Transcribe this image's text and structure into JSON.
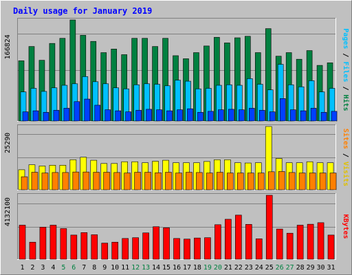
{
  "title": "Daily usage for January 2019",
  "colors": {
    "background": "#c0c0c0",
    "title_text": "#0000ff",
    "hits": "#008040",
    "files": "#00c0ff",
    "pages": "#0040ff",
    "visits": "#ffff00",
    "sites": "#ff8000",
    "kbytes": "#ff0000",
    "weekend_day": "#008040",
    "weekday_day": "#000000"
  },
  "chart_data": [
    {
      "type": "bar",
      "name": "hits-files-pages",
      "categories": [
        "1",
        "2",
        "3",
        "4",
        "5",
        "6",
        "7",
        "8",
        "9",
        "10",
        "11",
        "12",
        "13",
        "14",
        "15",
        "16",
        "17",
        "18",
        "19",
        "20",
        "21",
        "22",
        "23",
        "24",
        "25",
        "26",
        "27",
        "28",
        "29",
        "30",
        "31"
      ],
      "weekend_days": [
        "5",
        "6",
        "12",
        "13",
        "19",
        "20",
        "26",
        "27"
      ],
      "ylabel": "Pages / Files / Hits",
      "y_tick_label": "166824",
      "ylim": [
        0,
        198000
      ],
      "series": [
        {
          "name": "Hits",
          "values": [
            118000,
            146000,
            119000,
            152000,
            162000,
            198000,
            168000,
            156000,
            134000,
            141000,
            130000,
            162000,
            162000,
            146000,
            162000,
            128000,
            122000,
            134000,
            147000,
            164000,
            153000,
            163000,
            166000,
            134000,
            181000,
            127000,
            134000,
            121000,
            138000,
            109000,
            114000
          ]
        },
        {
          "name": "Files",
          "values": [
            57000,
            64000,
            58000,
            65000,
            70000,
            73000,
            87000,
            77000,
            73000,
            65000,
            63000,
            71000,
            73000,
            72000,
            69000,
            80000,
            78000,
            63000,
            64000,
            70000,
            71000,
            70000,
            83000,
            72000,
            61000,
            111000,
            71000,
            67000,
            79000,
            57000,
            64000
          ]
        },
        {
          "name": "Pages",
          "values": [
            18000,
            20000,
            17000,
            21000,
            25000,
            38000,
            43000,
            31000,
            22000,
            20000,
            18000,
            21000,
            23000,
            22000,
            20000,
            22000,
            24000,
            17000,
            19000,
            22000,
            23000,
            22000,
            25000,
            21000,
            18000,
            44000,
            22000,
            20000,
            25000,
            17000,
            19000
          ]
        }
      ]
    },
    {
      "type": "bar",
      "name": "visits-sites",
      "categories": [
        "1",
        "2",
        "3",
        "4",
        "5",
        "6",
        "7",
        "8",
        "9",
        "10",
        "11",
        "12",
        "13",
        "14",
        "15",
        "16",
        "17",
        "18",
        "19",
        "20",
        "21",
        "22",
        "23",
        "24",
        "25",
        "26",
        "27",
        "28",
        "29",
        "30",
        "31"
      ],
      "ylabel": "Sites / Visits",
      "y_tick_label": "25290",
      "ylim": [
        0,
        25290
      ],
      "series": [
        {
          "name": "Visits",
          "values": [
            8000,
            10000,
            9500,
            9800,
            9800,
            12000,
            13000,
            11800,
            10500,
            10500,
            11200,
            11200,
            10800,
            11400,
            11800,
            10800,
            10800,
            10800,
            11300,
            12000,
            12000,
            10800,
            10700,
            10800,
            25290,
            12500,
            10800,
            10800,
            11200,
            10800,
            10800
          ]
        },
        {
          "name": "Sites",
          "values": [
            5200,
            7000,
            6700,
            6900,
            6900,
            7100,
            7100,
            7000,
            7000,
            6900,
            6700,
            7000,
            7000,
            6800,
            7000,
            6700,
            7000,
            6900,
            6700,
            7000,
            6700,
            6700,
            6700,
            6700,
            7200,
            7300,
            6900,
            6700,
            6700,
            6700,
            6700
          ]
        }
      ]
    },
    {
      "type": "bar",
      "name": "kbytes",
      "categories": [
        "1",
        "2",
        "3",
        "4",
        "5",
        "6",
        "7",
        "8",
        "9",
        "10",
        "11",
        "12",
        "13",
        "14",
        "15",
        "16",
        "17",
        "18",
        "19",
        "20",
        "21",
        "22",
        "23",
        "24",
        "25",
        "26",
        "27",
        "28",
        "29",
        "30",
        "31"
      ],
      "ylabel": "KBytes",
      "y_tick_label": "4132100",
      "ylim": [
        0,
        4132100
      ],
      "series": [
        {
          "name": "KBytes",
          "values": [
            2200000,
            1100000,
            2070000,
            2200000,
            1980000,
            1560000,
            1720000,
            1580000,
            1040000,
            1100000,
            1340000,
            1390000,
            1700000,
            2100000,
            2030000,
            1340000,
            1300000,
            1370000,
            1390000,
            2230000,
            2580000,
            2850000,
            2250000,
            1320000,
            4132100,
            1950000,
            1680000,
            2200000,
            2260000,
            2360000,
            1560000
          ]
        }
      ]
    }
  ]
}
